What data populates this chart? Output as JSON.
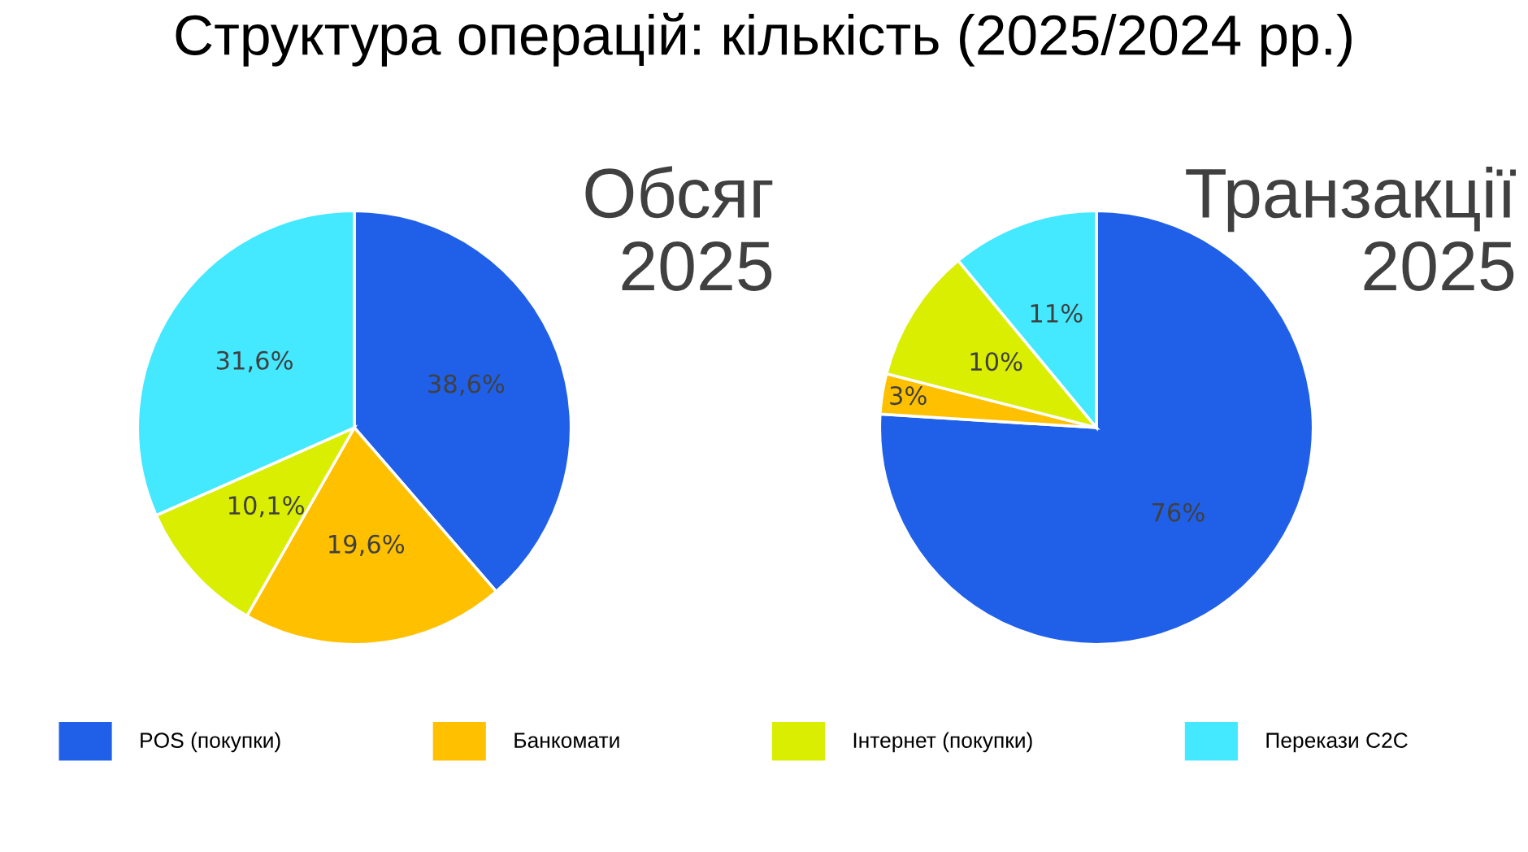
{
  "chart_data": [
    {
      "type": "pie",
      "title": "Структура операцій: кількість (2025/2024 рр.)",
      "subtitle": "Обсяг\n2025",
      "categories": [
        "POS (покупки)",
        "Банкомати",
        "Інтернет (покупки)",
        "Перекази C2C"
      ],
      "values": [
        38.6,
        19.6,
        10.1,
        31.6
      ],
      "colors": [
        "#2060e8",
        "#ffc000",
        "#d9ee00",
        "#44e8ff"
      ],
      "value_labels": [
        "38,6%",
        "19,6%",
        "10,1%",
        "31,6%"
      ],
      "legend": "bottom"
    },
    {
      "type": "pie",
      "subtitle": "Транзакції\n2025",
      "categories": [
        null,
        null,
        null,
        null
      ],
      "values": [
        76,
        3,
        10,
        11
      ],
      "colors": [
        "#2060e8",
        "#ffc000",
        "#d9ee00",
        "#44e8ff"
      ],
      "value_labels": [
        "76%",
        "3%",
        "10%",
        "11%"
      ]
    }
  ]
}
